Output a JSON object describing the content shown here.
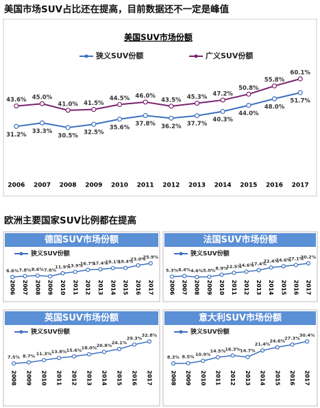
{
  "headings": [
    "美国市场SUV占比还在提高，目前数据还不一定是峰值",
    "欧洲主要国家SUV比例都在提高"
  ],
  "chart_data": [
    {
      "type": "line",
      "title": "美国SUV市场份额",
      "categories": [
        "2006",
        "2007",
        "2008",
        "2009",
        "2010",
        "2011",
        "2012",
        "2013",
        "2014",
        "2015",
        "2016",
        "2017"
      ],
      "series": [
        {
          "name": "狭义SUV份额",
          "color": "#3b6fc0",
          "values": [
            31.2,
            33.3,
            30.5,
            32.5,
            35.6,
            37.8,
            36.2,
            37.7,
            40.3,
            44.0,
            48.0,
            51.7
          ],
          "value_labels": [
            "31.2%",
            "33.3%",
            "30.5%",
            "32.5%",
            "35.6%",
            "37.8%",
            "36.2%",
            "37.7%",
            "40.3%",
            "44.0%",
            "48.0%",
            "51.7%"
          ]
        },
        {
          "name": "广义SUV份额",
          "color": "#7a1f6e",
          "values": [
            43.6,
            45.0,
            41.0,
            41.5,
            44.5,
            46.0,
            43.5,
            45.3,
            47.2,
            50.8,
            55.8,
            60.1
          ],
          "value_labels": [
            "43.6%",
            "45.0%",
            "41.0%",
            "41.5%",
            "44.5%",
            "46.0%",
            "43.5%",
            "45.3%",
            "47.2%",
            "50.8%",
            "55.8%",
            "60.1%"
          ]
        }
      ]
    },
    {
      "type": "line",
      "title": "德国SUV市场份额",
      "categories": [
        "2006",
        "2007",
        "2008",
        "2009",
        "2010",
        "2011",
        "2012",
        "2013",
        "2014",
        "2015",
        "2016",
        "2017"
      ],
      "series": [
        {
          "name": "狭义SUV份额",
          "color": "#3b6fc0",
          "values": [
            6.6,
            7.8,
            8.6,
            7.6,
            11.9,
            13.9,
            16.7,
            17.4,
            19.1,
            19.4,
            23.0,
            25.9
          ],
          "value_labels": [
            "6.6%",
            "7.8%",
            "8.6%",
            "7.6%",
            "11.9%",
            "13.9%",
            "16.7%",
            "17.4%",
            "19.1%",
            "19.4%",
            "23.0%",
            "25.9%"
          ]
        }
      ]
    },
    {
      "type": "line",
      "title": "法国SUV市场份额",
      "categories": [
        "2006",
        "2007",
        "2008",
        "2009",
        "2010",
        "2011",
        "2012",
        "2013",
        "2014",
        "2015",
        "2016",
        "2017"
      ],
      "series": [
        {
          "name": "狭义SUV份额",
          "color": "#3b6fc0",
          "values": [
            5.3,
            6.4,
            4.6,
            5.0,
            8.9,
            12.5,
            14.6,
            17.4,
            22.4,
            24.6,
            27.1,
            30.2
          ],
          "value_labels": [
            "5.3%",
            "6.4%",
            "4.6%",
            "5.0%",
            "8.9%",
            "12.5%",
            "14.6%",
            "17.4%",
            "22.4%",
            "24.6%",
            "27.1%",
            "30.2%"
          ]
        }
      ]
    },
    {
      "type": "line",
      "title": "英国SUV市场份额",
      "categories": [
        "2008",
        "2009",
        "2010",
        "2011",
        "2012",
        "2013",
        "2014",
        "2015",
        "2016",
        "2017"
      ],
      "series": [
        {
          "name": "狭义SUV份额",
          "color": "#3b6fc0",
          "values": [
            7.5,
            8.7,
            11.3,
            13.8,
            15.6,
            18.0,
            20.8,
            24.1,
            29.3,
            32.8
          ],
          "value_labels": [
            "7.5%",
            "8.7%",
            "11.3%",
            "13.8%",
            "15.6%",
            "18.0%",
            "20.8%",
            "24.1%",
            "29.3%",
            "32.8%"
          ]
        }
      ]
    },
    {
      "type": "line",
      "title": "意大利SUV市场份额",
      "categories": [
        "2008",
        "2009",
        "2010",
        "2011",
        "2012",
        "2013",
        "2014",
        "2015",
        "2016",
        "2017"
      ],
      "series": [
        {
          "name": "狭义SUV份额",
          "color": "#3b6fc0",
          "values": [
            8.3,
            8.5,
            10.9,
            14.5,
            16.3,
            14.7,
            21.4,
            24.6,
            27.3,
            30.4
          ],
          "value_labels": [
            "8.3%",
            "8.5%",
            "10.9%",
            "14.5%",
            "16.3%",
            "14.7%",
            "21.4%",
            "24.6%",
            "27.3%",
            "30.4%"
          ]
        }
      ]
    }
  ]
}
